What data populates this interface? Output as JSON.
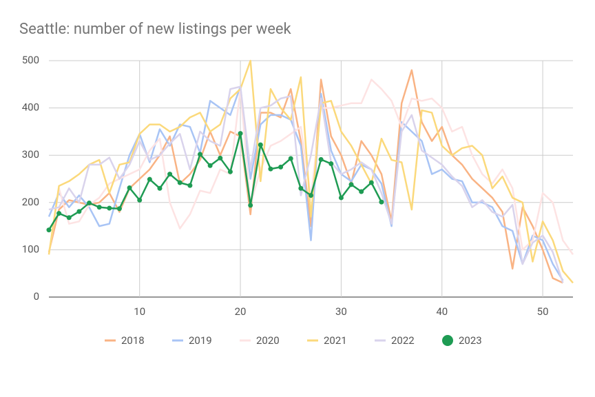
{
  "chart_data": {
    "type": "line",
    "title": "Seattle: number of new listings per week",
    "x": [
      1,
      2,
      3,
      4,
      5,
      6,
      7,
      8,
      9,
      10,
      11,
      12,
      13,
      14,
      15,
      16,
      17,
      18,
      19,
      20,
      21,
      22,
      23,
      24,
      25,
      26,
      27,
      28,
      29,
      30,
      31,
      32,
      33,
      34,
      35,
      36,
      37,
      38,
      39,
      40,
      41,
      42,
      43,
      44,
      45,
      46,
      47,
      48,
      49,
      50,
      51,
      52,
      53
    ],
    "xlim": [
      1,
      53
    ],
    "xticks": [
      10,
      20,
      30,
      40,
      50
    ],
    "ylim": [
      0,
      500
    ],
    "yticks": [
      0,
      100,
      200,
      300,
      400,
      500
    ],
    "grid": true,
    "legend": "bottom",
    "series": [
      {
        "name": "2018",
        "color": "#f9b384",
        "values": [
          95,
          185,
          205,
          200,
          195,
          200,
          220,
          180,
          230,
          250,
          270,
          300,
          340,
          240,
          260,
          290,
          350,
          300,
          350,
          340,
          175,
          390,
          390,
          380,
          440,
          330,
          150,
          460,
          340,
          300,
          240,
          330,
          300,
          260,
          160,
          410,
          480,
          370,
          330,
          360,
          300,
          280,
          250,
          230,
          210,
          180,
          60,
          190,
          150,
          100,
          40,
          30,
          null
        ]
      },
      {
        "name": "2019",
        "color": "#a8c4f5",
        "values": [
          170,
          220,
          190,
          215,
          190,
          150,
          155,
          230,
          300,
          345,
          285,
          355,
          320,
          365,
          360,
          305,
          415,
          400,
          385,
          445,
          250,
          365,
          385,
          385,
          375,
          320,
          120,
          430,
          310,
          260,
          245,
          280,
          270,
          240,
          150,
          370,
          350,
          330,
          260,
          270,
          250,
          245,
          200,
          200,
          190,
          150,
          140,
          70,
          130,
          120,
          70,
          35,
          null
        ]
      },
      {
        "name": "2020",
        "color": "#fde3e3",
        "values": [
          90,
          230,
          155,
          160,
          195,
          210,
          240,
          250,
          260,
          270,
          310,
          335,
          200,
          145,
          175,
          225,
          220,
          270,
          260,
          440,
          195,
          270,
          320,
          330,
          345,
          360,
          210,
          400,
          400,
          405,
          410,
          410,
          460,
          440,
          415,
          360,
          420,
          415,
          420,
          400,
          350,
          360,
          300,
          260,
          240,
          270,
          230,
          100,
          120,
          220,
          200,
          120,
          90
        ]
      },
      {
        "name": "2021",
        "color": "#fbd97b",
        "values": [
          90,
          235,
          245,
          260,
          280,
          290,
          220,
          280,
          285,
          345,
          365,
          365,
          350,
          360,
          380,
          390,
          350,
          365,
          420,
          440,
          500,
          245,
          440,
          400,
          375,
          465,
          170,
          410,
          415,
          350,
          320,
          280,
          240,
          335,
          290,
          285,
          185,
          395,
          390,
          320,
          300,
          315,
          320,
          300,
          230,
          255,
          210,
          200,
          75,
          160,
          120,
          55,
          30
        ]
      },
      {
        "name": "2022",
        "color": "#d9d3ec",
        "values": [
          185,
          190,
          230,
          200,
          280,
          280,
          295,
          250,
          280,
          330,
          290,
          300,
          325,
          345,
          270,
          350,
          330,
          320,
          440,
          445,
          270,
          400,
          405,
          420,
          425,
          215,
          300,
          420,
          285,
          260,
          270,
          285,
          270,
          220,
          155,
          350,
          385,
          310,
          295,
          280,
          255,
          235,
          190,
          205,
          180,
          170,
          195,
          70,
          115,
          130,
          95,
          30,
          null
        ]
      },
      {
        "name": "2023",
        "color": "#1e9b53",
        "markers": true,
        "values": [
          142,
          177,
          168,
          181,
          199,
          190,
          188,
          187,
          231,
          205,
          249,
          230,
          260,
          242,
          236,
          302,
          278,
          294,
          265,
          346,
          194,
          322,
          271,
          275,
          293,
          230,
          215,
          291,
          282,
          210,
          238,
          223,
          242,
          201,
          null,
          null,
          null,
          null,
          null,
          null,
          null,
          null,
          null,
          null,
          null,
          null,
          null,
          null,
          null,
          null,
          null,
          null,
          null
        ]
      }
    ]
  }
}
